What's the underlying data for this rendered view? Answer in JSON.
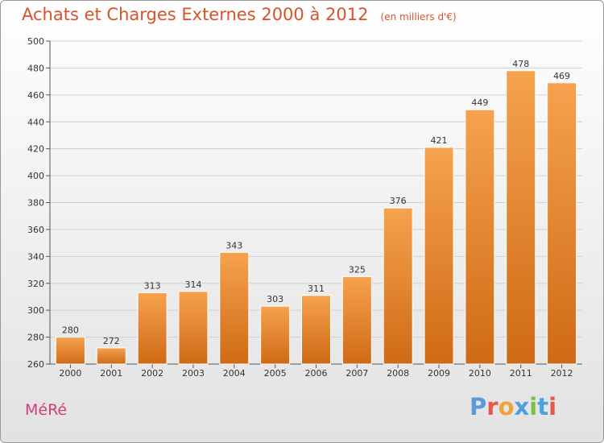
{
  "header": {
    "title": "Achats et Charges Externes 2000 à 2012",
    "subtitle": "(en milliers d'€)"
  },
  "footer": {
    "commune": "MéRé",
    "brand": "Proxiti"
  },
  "colors": {
    "title": "#d8532c",
    "commune": "#d23c78",
    "bar_top": "#f6a24e",
    "bar_bottom": "#cf6a15",
    "grid": "#cfcfcf",
    "axis": "#555555",
    "brand_letters": [
      "#5b9bd5",
      "#e9574c",
      "#f2a23a",
      "#4aa3df",
      "#7cc142",
      "#4aa3df",
      "#e9574c"
    ]
  },
  "chart_data": {
    "type": "bar",
    "title": "Achats et Charges Externes 2000 à 2012",
    "subtitle": "(en milliers d'€)",
    "xlabel": "",
    "ylabel": "",
    "categories": [
      "2000",
      "2001",
      "2002",
      "2003",
      "2004",
      "2005",
      "2006",
      "2007",
      "2008",
      "2009",
      "2010",
      "2011",
      "2012"
    ],
    "values": [
      280,
      272,
      313,
      314,
      343,
      303,
      311,
      325,
      376,
      421,
      449,
      478,
      469
    ],
    "ylim": [
      260,
      500
    ],
    "yticks": [
      260,
      280,
      300,
      320,
      340,
      360,
      380,
      400,
      420,
      440,
      460,
      480,
      500
    ],
    "grid": true,
    "legend": "none"
  }
}
